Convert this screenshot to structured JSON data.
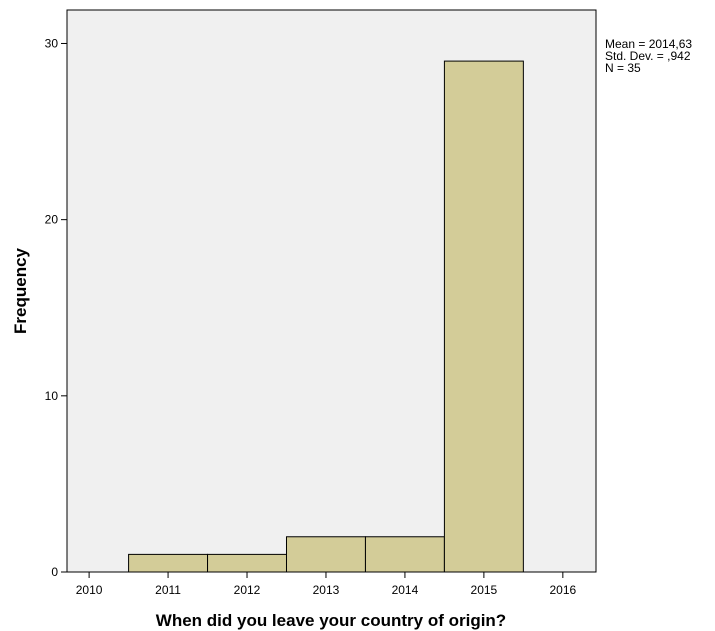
{
  "chart_data": {
    "type": "bar",
    "categories": [
      "2011",
      "2012",
      "2013",
      "2014",
      "2015"
    ],
    "values": [
      1,
      1,
      2,
      2,
      29
    ],
    "x_ticks": [
      "2010",
      "2011",
      "2012",
      "2013",
      "2014",
      "2015",
      "2016"
    ],
    "y_ticks": [
      "0",
      "10",
      "20",
      "30"
    ],
    "xlabel": "When did you leave your country of origin?",
    "ylabel": "Frequency",
    "ylim": [
      0,
      31.9
    ],
    "xlim": [
      2009.72,
      2016.42
    ],
    "grid": false,
    "legend": "none",
    "stats": {
      "mean": "Mean = 2014,63",
      "std_dev": "Std. Dev. = ,942",
      "n": "N = 35"
    },
    "colors": {
      "bar_fill": "#d3cc98",
      "bar_stroke": "#000000",
      "plot_background": "#f0f0f0"
    }
  }
}
